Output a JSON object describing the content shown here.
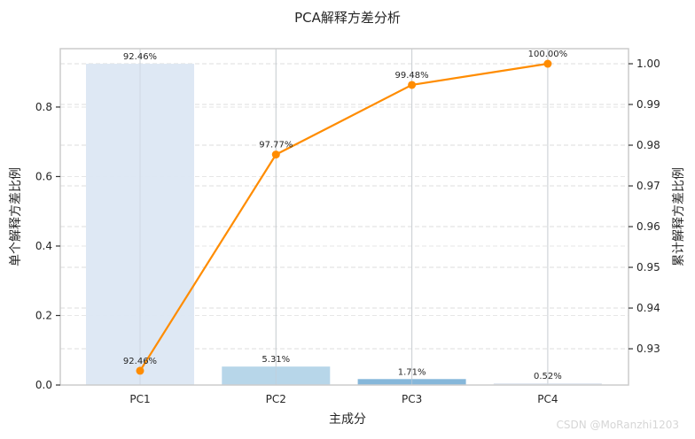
{
  "chart_data": {
    "type": "bar+line",
    "title": "PCA解释方差分析",
    "xlabel": "主成分",
    "ylabel_left": "单个解释方差比例",
    "ylabel_right": "累计解释方差比例",
    "categories": [
      "PC1",
      "PC2",
      "PC3",
      "PC4"
    ],
    "series": [
      {
        "name": "单个解释方差比例",
        "kind": "bar",
        "axis": "left",
        "values": [
          0.9246,
          0.0531,
          0.0171,
          0.0052
        ],
        "labels": [
          "92.46%",
          "5.31%",
          "1.71%",
          "0.52%"
        ],
        "colors": [
          "#dce7f3",
          "#b3d4e8",
          "#7fb3d8",
          "#dfe6ee"
        ]
      },
      {
        "name": "累计解释方差比例",
        "kind": "line",
        "axis": "right",
        "values": [
          0.9246,
          0.9777,
          0.9948,
          1.0
        ],
        "labels": [
          "92.46%",
          "97.77%",
          "99.48%",
          "100.00%"
        ],
        "color": "#ff8c00"
      }
    ],
    "ylim_left": [
      0,
      0.968
    ],
    "yticks_left": [
      "0.0",
      "0.2",
      "0.4",
      "0.6",
      "0.8"
    ],
    "ylim_right": [
      0.9211,
      1.0037
    ],
    "yticks_right": [
      "0.93",
      "0.94",
      "0.95",
      "0.96",
      "0.97",
      "0.98",
      "0.99",
      "1.00"
    ],
    "grid": true,
    "legend": "none"
  },
  "watermark": "CSDN @MoRanzhi1203"
}
